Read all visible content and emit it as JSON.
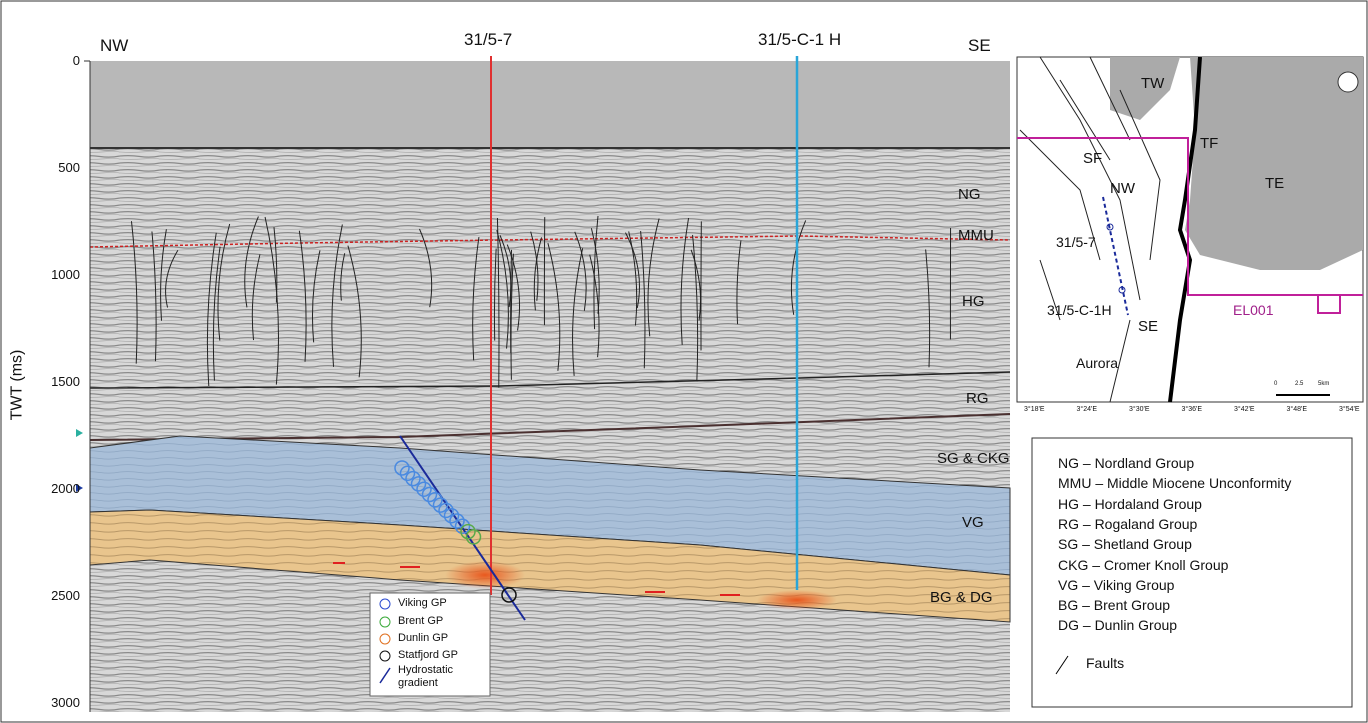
{
  "section": {
    "y_axis_label": "TWT (ms)",
    "y_ticks": [
      0,
      500,
      1000,
      1500,
      2000,
      2500,
      3000
    ],
    "direction_left": "NW",
    "direction_right": "SE",
    "wells": [
      "31/5-7",
      "31/5-C-1 H"
    ],
    "units": [
      "NG",
      "MMU",
      "HG",
      "RG",
      "SG & CKG",
      "VG",
      "BG & DG"
    ],
    "legend": [
      "Viking GP",
      "Brent GP",
      "Dunlin GP",
      "Statfjord GP",
      "Hydrostatic gradient"
    ]
  },
  "map": {
    "labels": [
      "TW",
      "TF",
      "SF",
      "NW",
      "TE",
      "31/5-7",
      "31/5-C-1H",
      "SE",
      "Aurora",
      "EL001"
    ],
    "scale": [
      "0",
      "2.5",
      "5km"
    ],
    "lon_ticks": [
      "3°18'E",
      "3°24'E",
      "3°30'E",
      "3°36'E",
      "3°42'E",
      "3°48'E",
      "3°54'E"
    ]
  },
  "key": {
    "entries": [
      "NG – Nordland Group",
      "MMU – Middle Miocene Unconformity",
      "HG – Hordaland Group",
      "RG – Rogaland Group",
      "SG – Shetland Group",
      "CKG – Cromer Knoll Group",
      "VG – Viking Group",
      "BG – Brent Group",
      "DG – Dunlin Group"
    ],
    "faults": "Faults"
  }
}
